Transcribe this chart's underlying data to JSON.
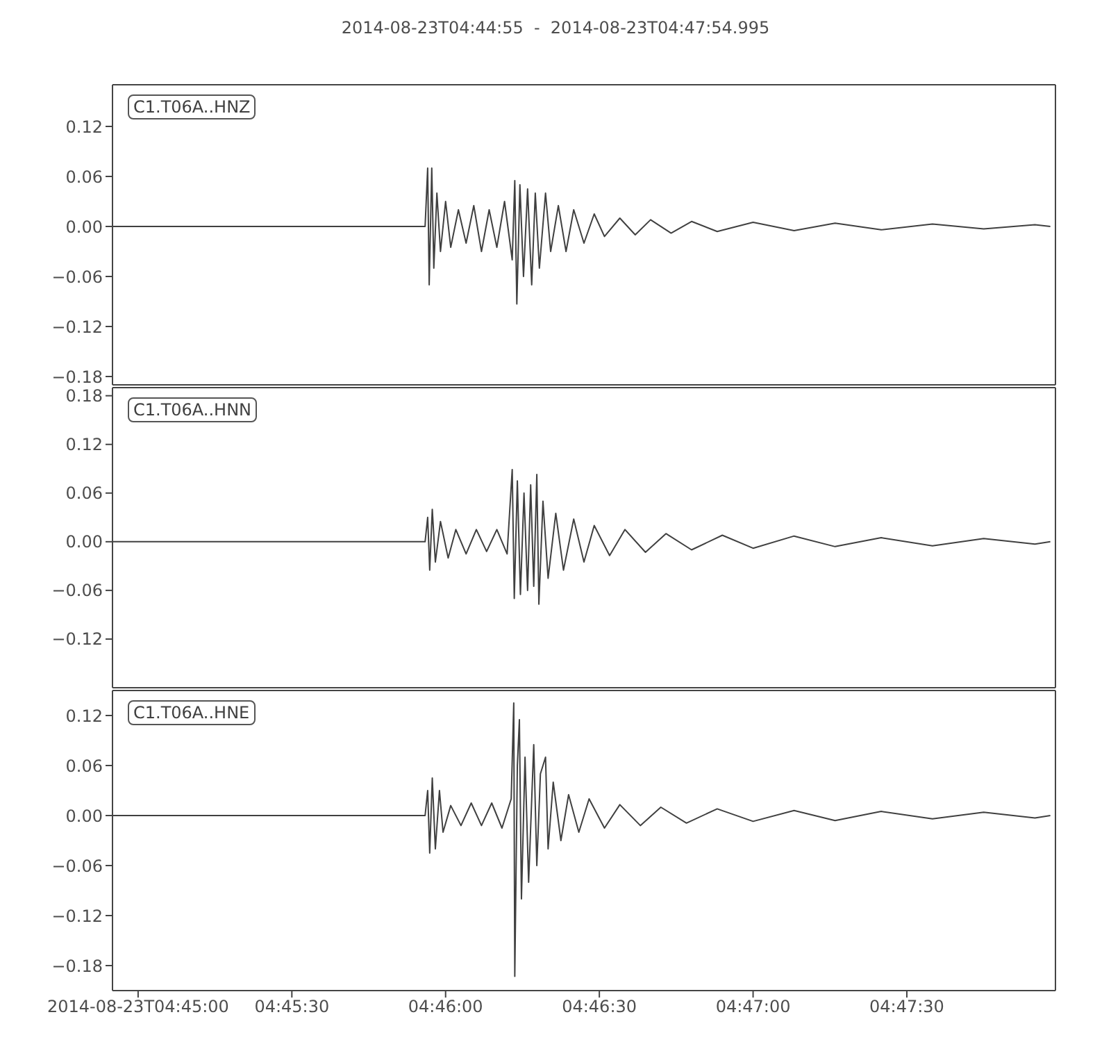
{
  "chart_data": [
    {
      "type": "line",
      "title": "2014-08-23T04:44:55  -  2014-08-23T04:47:54.995",
      "legend": "top left",
      "tick_labels": "y",
      "xlim": [
        "2014-08-23T04:44:55",
        "2014-08-23T04:47:59"
      ],
      "ylim": [
        -0.19,
        0.17
      ],
      "yticks": [
        {
          "value": 0.12,
          "label": "0.12"
        },
        {
          "value": 0.06,
          "label": "0.06"
        },
        {
          "value": 0,
          "label": "0.00"
        },
        {
          "value": -0.06,
          "label": "−0.06"
        },
        {
          "value": -0.12,
          "label": "−0.12"
        },
        {
          "value": -0.18,
          "label": "−0.18"
        }
      ],
      "series": [
        {
          "name": "C1.T06A..HNZ",
          "color": "#404040",
          "x": [
            "2014-08-23T04:44:55",
            "2014-08-23T04:45:56",
            "2014-08-23T04:45:56.5",
            "2014-08-23T04:45:56.8",
            "2014-08-23T04:45:57.3",
            "2014-08-23T04:45:57.7",
            "2014-08-23T04:45:58.3",
            "2014-08-23T04:45:59",
            "2014-08-23T04:46:00",
            "2014-08-23T04:46:01",
            "2014-08-23T04:46:02.5",
            "2014-08-23T04:46:04",
            "2014-08-23T04:46:05.5",
            "2014-08-23T04:46:07",
            "2014-08-23T04:46:08.5",
            "2014-08-23T04:46:10",
            "2014-08-23T04:46:11.5",
            "2014-08-23T04:46:13",
            "2014-08-23T04:46:13.5",
            "2014-08-23T04:46:13.9",
            "2014-08-23T04:46:14.5",
            "2014-08-23T04:46:15.2",
            "2014-08-23T04:46:16",
            "2014-08-23T04:46:16.8",
            "2014-08-23T04:46:17.5",
            "2014-08-23T04:46:18.3",
            "2014-08-23T04:46:19.5",
            "2014-08-23T04:46:20.5",
            "2014-08-23T04:46:22",
            "2014-08-23T04:46:23.5",
            "2014-08-23T04:46:25",
            "2014-08-23T04:46:27",
            "2014-08-23T04:46:29",
            "2014-08-23T04:46:31",
            "2014-08-23T04:46:34",
            "2014-08-23T04:46:37",
            "2014-08-23T04:46:40",
            "2014-08-23T04:46:44",
            "2014-08-23T04:46:48",
            "2014-08-23T04:46:53",
            "2014-08-23T04:47:00",
            "2014-08-23T04:47:08",
            "2014-08-23T04:47:16",
            "2014-08-23T04:47:25",
            "2014-08-23T04:47:35",
            "2014-08-23T04:47:45",
            "2014-08-23T04:47:55",
            "2014-08-23T04:47:58"
          ],
          "values": [
            0,
            0,
            0.07,
            -0.07,
            0.07,
            -0.05,
            0.04,
            -0.03,
            0.03,
            -0.025,
            0.02,
            -0.02,
            0.025,
            -0.03,
            0.02,
            -0.025,
            0.03,
            -0.04,
            0.055,
            -0.093,
            0.05,
            -0.06,
            0.045,
            -0.07,
            0.04,
            -0.05,
            0.04,
            -0.03,
            0.025,
            -0.03,
            0.02,
            -0.02,
            0.015,
            -0.012,
            0.01,
            -0.01,
            0.008,
            -0.008,
            0.006,
            -0.006,
            0.005,
            -0.005,
            0.004,
            -0.004,
            0.003,
            -0.003,
            0.002,
            0
          ]
        }
      ]
    },
    {
      "type": "line",
      "legend": "top left",
      "tick_labels": "y",
      "xlim": [
        "2014-08-23T04:44:55",
        "2014-08-23T04:47:59"
      ],
      "ylim": [
        -0.18,
        0.19
      ],
      "yticks": [
        {
          "value": 0.18,
          "label": "0.18"
        },
        {
          "value": 0.12,
          "label": "0.12"
        },
        {
          "value": 0.06,
          "label": "0.06"
        },
        {
          "value": 0,
          "label": "0.00"
        },
        {
          "value": -0.06,
          "label": "−0.06"
        },
        {
          "value": -0.12,
          "label": "−0.12"
        }
      ],
      "series": [
        {
          "name": "C1.T06A..HNN",
          "color": "#404040",
          "x": [
            "2014-08-23T04:44:55",
            "2014-08-23T04:45:56",
            "2014-08-23T04:45:56.5",
            "2014-08-23T04:45:56.9",
            "2014-08-23T04:45:57.4",
            "2014-08-23T04:45:58",
            "2014-08-23T04:45:59",
            "2014-08-23T04:46:00.5",
            "2014-08-23T04:46:02",
            "2014-08-23T04:46:04",
            "2014-08-23T04:46:06",
            "2014-08-23T04:46:08",
            "2014-08-23T04:46:10",
            "2014-08-23T04:46:12",
            "2014-08-23T04:46:13",
            "2014-08-23T04:46:13.4",
            "2014-08-23T04:46:14",
            "2014-08-23T04:46:14.6",
            "2014-08-23T04:46:15.3",
            "2014-08-23T04:46:16",
            "2014-08-23T04:46:16.6",
            "2014-08-23T04:46:17.2",
            "2014-08-23T04:46:17.8",
            "2014-08-23T04:46:18.2",
            "2014-08-23T04:46:19",
            "2014-08-23T04:46:20",
            "2014-08-23T04:46:21.5",
            "2014-08-23T04:46:23",
            "2014-08-23T04:46:25",
            "2014-08-23T04:46:27",
            "2014-08-23T04:46:29",
            "2014-08-23T04:46:32",
            "2014-08-23T04:46:35",
            "2014-08-23T04:46:39",
            "2014-08-23T04:46:43",
            "2014-08-23T04:46:48",
            "2014-08-23T04:46:54",
            "2014-08-23T04:47:00",
            "2014-08-23T04:47:08",
            "2014-08-23T04:47:16",
            "2014-08-23T04:47:25",
            "2014-08-23T04:47:35",
            "2014-08-23T04:47:45",
            "2014-08-23T04:47:55",
            "2014-08-23T04:47:58"
          ],
          "values": [
            0,
            0,
            0.03,
            -0.035,
            0.04,
            -0.025,
            0.025,
            -0.02,
            0.015,
            -0.015,
            0.015,
            -0.012,
            0.015,
            -0.015,
            0.089,
            -0.07,
            0.075,
            -0.065,
            0.06,
            -0.06,
            0.07,
            -0.055,
            0.083,
            -0.077,
            0.05,
            -0.045,
            0.035,
            -0.035,
            0.028,
            -0.025,
            0.02,
            -0.017,
            0.015,
            -0.013,
            0.01,
            -0.01,
            0.008,
            -0.008,
            0.007,
            -0.006,
            0.005,
            -0.005,
            0.004,
            -0.003,
            0
          ]
        }
      ]
    },
    {
      "type": "line",
      "legend": "top left",
      "xlim": [
        "2014-08-23T04:44:55",
        "2014-08-23T04:47:59"
      ],
      "ylim": [
        -0.21,
        0.15
      ],
      "yticks": [
        {
          "value": 0.12,
          "label": "0.12"
        },
        {
          "value": 0.06,
          "label": "0.06"
        },
        {
          "value": 0,
          "label": "0.00"
        },
        {
          "value": -0.06,
          "label": "−0.06"
        },
        {
          "value": -0.12,
          "label": "−0.12"
        },
        {
          "value": -0.18,
          "label": "−0.18"
        }
      ],
      "xticks": [
        {
          "value": "2014-08-23T04:45:00",
          "label": "2014-08-23T04:45:00"
        },
        {
          "value": "2014-08-23T04:45:30",
          "label": "04:45:30"
        },
        {
          "value": "2014-08-23T04:46:00",
          "label": "04:46:00"
        },
        {
          "value": "2014-08-23T04:46:30",
          "label": "04:46:30"
        },
        {
          "value": "2014-08-23T04:47:00",
          "label": "04:47:00"
        },
        {
          "value": "2014-08-23T04:47:30",
          "label": "04:47:30"
        }
      ],
      "series": [
        {
          "name": "C1.T06A..HNE",
          "color": "#404040",
          "x": [
            "2014-08-23T04:44:55",
            "2014-08-23T04:45:56",
            "2014-08-23T04:45:56.5",
            "2014-08-23T04:45:56.9",
            "2014-08-23T04:45:57.4",
            "2014-08-23T04:45:58",
            "2014-08-23T04:45:58.8",
            "2014-08-23T04:45:59.5",
            "2014-08-23T04:46:01",
            "2014-08-23T04:46:03",
            "2014-08-23T04:46:05",
            "2014-08-23T04:46:07",
            "2014-08-23T04:46:09",
            "2014-08-23T04:46:11",
            "2014-08-23T04:46:12.8",
            "2014-08-23T04:46:13.3",
            "2014-08-23T04:46:13.5",
            "2014-08-23T04:46:14",
            "2014-08-23T04:46:14.4",
            "2014-08-23T04:46:14.8",
            "2014-08-23T04:46:15.5",
            "2014-08-23T04:46:16.2",
            "2014-08-23T04:46:17.2",
            "2014-08-23T04:46:17.8",
            "2014-08-23T04:46:18.5",
            "2014-08-23T04:46:19.5",
            "2014-08-23T04:46:20",
            "2014-08-23T04:46:21",
            "2014-08-23T04:46:22.5",
            "2014-08-23T04:46:24",
            "2014-08-23T04:46:26",
            "2014-08-23T04:46:28",
            "2014-08-23T04:46:31",
            "2014-08-23T04:46:34",
            "2014-08-23T04:46:38",
            "2014-08-23T04:46:42",
            "2014-08-23T04:46:47",
            "2014-08-23T04:46:53",
            "2014-08-23T04:47:00",
            "2014-08-23T04:47:08",
            "2014-08-23T04:47:16",
            "2014-08-23T04:47:25",
            "2014-08-23T04:47:35",
            "2014-08-23T04:47:45",
            "2014-08-23T04:47:55",
            "2014-08-23T04:47:58"
          ],
          "values": [
            0,
            0,
            0.03,
            -0.045,
            0.045,
            -0.04,
            0.03,
            -0.02,
            0.012,
            -0.012,
            0.015,
            -0.012,
            0.015,
            -0.015,
            0.02,
            0.135,
            -0.193,
            0.06,
            0.115,
            -0.1,
            0.07,
            -0.08,
            0.085,
            -0.06,
            0.05,
            0.07,
            -0.04,
            0.04,
            -0.03,
            0.025,
            -0.02,
            0.02,
            -0.015,
            0.013,
            -0.012,
            0.01,
            -0.009,
            0.008,
            -0.007,
            0.006,
            -0.006,
            0.005,
            -0.004,
            0.004,
            -0.003,
            0
          ]
        }
      ]
    }
  ]
}
